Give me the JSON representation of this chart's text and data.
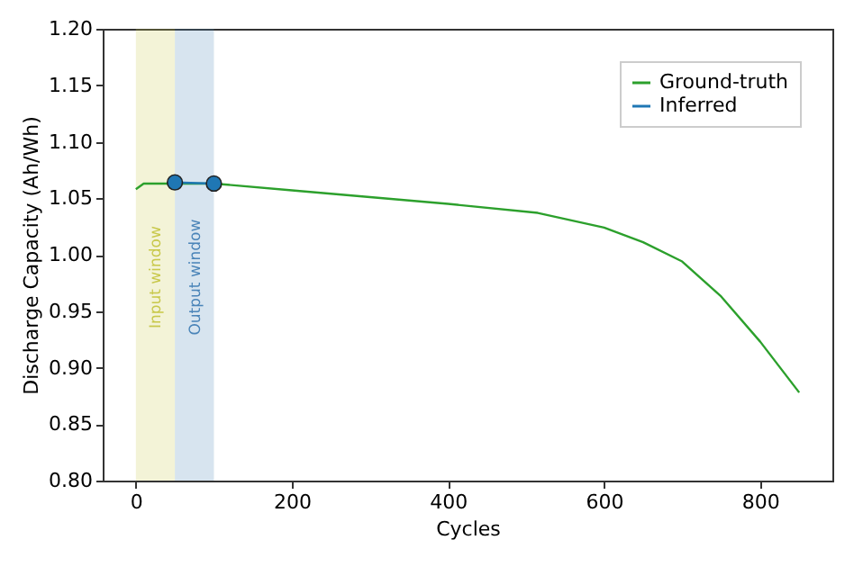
{
  "chart_data": {
    "type": "line",
    "xlabel": "Cycles",
    "ylabel": "Discharge Capacity (Ah/Wh)",
    "xlim": [
      -42.5,
      892.5
    ],
    "ylim": [
      0.8,
      1.2
    ],
    "xticks": [
      0,
      200,
      400,
      600,
      800
    ],
    "yticks": [
      {
        "value": 0.8,
        "label": "0.80"
      },
      0.85,
      {
        "value": 0.9,
        "label": "0.90"
      },
      0.95,
      {
        "value": 1.0,
        "label": "1.00"
      },
      1.05,
      {
        "value": 1.1,
        "label": "1.10"
      },
      1.15,
      {
        "value": 1.2,
        "label": "1.20"
      }
    ],
    "grid": false,
    "legend": "top right",
    "series": [
      {
        "name": "Ground-truth",
        "color": "#2ca02c",
        "marker": "none",
        "x": [
          0,
          10,
          100,
          200,
          300,
          400,
          515,
          600,
          650,
          700,
          750,
          800,
          850
        ],
        "values": [
          1.058,
          1.063,
          1.063,
          1.057,
          1.051,
          1.045,
          1.037,
          1.024,
          1.011,
          0.994,
          0.963,
          0.923,
          0.878
        ]
      },
      {
        "name": "Inferred",
        "color": "#1f77b4",
        "marker": "circle",
        "x": [
          50,
          100
        ],
        "values": [
          1.064,
          1.063
        ]
      }
    ],
    "bands": [
      {
        "axis": "x",
        "from": 0,
        "to": 50,
        "label": "Input window",
        "color": "#c8c84a"
      },
      {
        "axis": "x",
        "from": 50,
        "to": 100,
        "label": "Output window",
        "color": "#4a84b8"
      }
    ]
  }
}
